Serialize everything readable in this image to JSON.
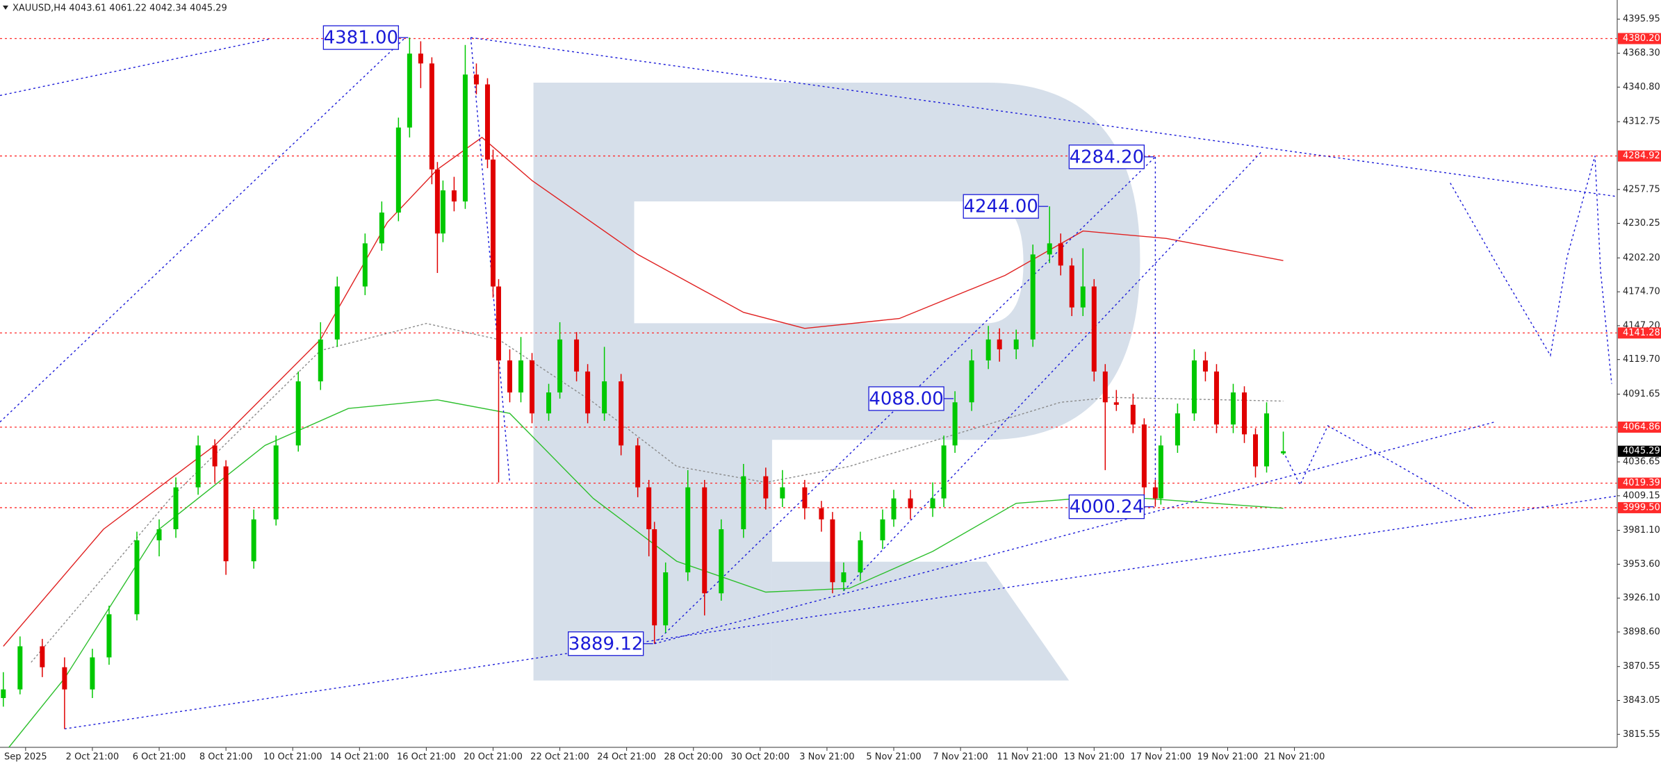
{
  "chart_data": {
    "type": "candlestick",
    "header": "XAUUSD,H4  4043.61 4061.22 4042.34 4045.29",
    "up_color": "#00c800",
    "down_color": "#e00000",
    "xlim": [
      -0.6,
      290
    ],
    "ylim": [
      3805,
      4411.5
    ],
    "yticks": [
      4395.95,
      {
        "value": 4368.3,
        "label": "4368.30"
      },
      {
        "value": 4340.8,
        "label": "4340.80"
      },
      4312.75,
      4257.75,
      4230.25,
      {
        "value": 4202.2,
        "label": "4202.20"
      },
      {
        "value": 4174.7,
        "label": "4174.70"
      },
      {
        "value": 4147.2,
        "label": "4147.20"
      },
      {
        "value": 4119.7,
        "label": "4119.70"
      },
      4091.65,
      4036.65,
      4009.15,
      {
        "value": 3981.1,
        "label": "3981.10"
      },
      {
        "value": 3953.6,
        "label": "3953.60"
      },
      {
        "value": 3926.1,
        "label": "3926.10"
      },
      {
        "value": 3898.6,
        "label": "3898.60"
      },
      3870.55,
      3843.05,
      3815.55
    ],
    "xticks": [
      {
        "value": 4,
        "label": "Sep 2025"
      },
      {
        "value": 16,
        "label": "2 Oct 21:00"
      },
      {
        "value": 28,
        "label": "6 Oct 21:00"
      },
      {
        "value": 40,
        "label": "8 Oct 21:00"
      },
      {
        "value": 52,
        "label": "10 Oct 21:00"
      },
      {
        "value": 64,
        "label": "14 Oct 21:00"
      },
      {
        "value": 76,
        "label": "16 Oct 21:00"
      },
      {
        "value": 88,
        "label": "20 Oct 21:00"
      },
      {
        "value": 100,
        "label": "22 Oct 21:00"
      },
      {
        "value": 112,
        "label": "24 Oct 21:00"
      },
      {
        "value": 124,
        "label": "28 Oct 20:00"
      },
      {
        "value": 136,
        "label": "30 Oct 20:00"
      },
      {
        "value": 148,
        "label": "3 Nov 21:00"
      },
      {
        "value": 160,
        "label": "5 Nov 21:00"
      },
      {
        "value": 172,
        "label": "7 Nov 21:00"
      },
      {
        "value": 184,
        "label": "11 Nov 21:00"
      },
      {
        "value": 196,
        "label": "13 Nov 21:00"
      },
      {
        "value": 208,
        "label": "17 Nov 21:00"
      },
      {
        "value": 220,
        "label": "19 Nov 21:00"
      },
      {
        "value": 232,
        "label": "21 Nov 21:00"
      }
    ],
    "x": [
      0,
      3,
      7,
      11,
      16,
      19,
      24,
      28,
      31,
      35,
      38,
      40,
      45,
      49,
      53,
      57,
      60,
      65,
      68,
      71,
      73,
      75,
      77,
      78,
      79,
      81,
      83,
      85,
      87,
      88,
      89,
      91,
      93,
      95,
      98,
      100,
      103,
      105,
      108,
      111,
      114,
      116,
      117,
      119,
      123,
      126,
      129,
      133,
      137,
      140,
      144,
      147,
      149,
      151,
      154,
      158,
      160,
      163,
      167,
      169,
      171,
      174,
      177,
      179,
      182,
      185,
      188,
      190,
      192,
      194,
      196,
      198,
      200,
      203,
      205,
      207,
      208,
      211,
      214,
      216,
      218,
      221,
      223,
      225,
      227,
      230
    ],
    "open": [
      3845,
      3852,
      3887,
      3870,
      3852,
      3878,
      3913,
      3973,
      3982,
      4016,
      4050,
      4033,
      3956,
      3990,
      4050,
      4102,
      4136,
      4179,
      4214,
      4239,
      4308,
      4368,
      4360,
      4274,
      4222,
      4257,
      4248,
      4351,
      4343,
      4282,
      4179,
      4119,
      4093,
      4119,
      4076,
      4093,
      4136,
      4110,
      4076,
      4102,
      4050,
      4016,
      3982,
      3904,
      3947,
      4016,
      3930,
      3982,
      4025,
      4007,
      4016,
      3999,
      3990,
      3939,
      3947,
      3973,
      3990,
      4007,
      3999,
      4007,
      4050,
      4085,
      4119,
      4136,
      4128,
      4136,
      4205,
      4214,
      4196,
      4162,
      4179,
      4110,
      4085,
      4083,
      4067,
      4016,
      4007,
      4050,
      4076,
      4119,
      4110,
      4067,
      4093,
      4059,
      4033,
      4043.61
    ],
    "high": [
      3866,
      3895,
      3893,
      3878,
      3885,
      3920,
      3980,
      3990,
      4024,
      4058,
      4055,
      4038,
      3998,
      4058,
      4110,
      4150,
      4187,
      4222,
      4248,
      4316,
      4381,
      4378,
      4365,
      4280,
      4265,
      4268,
      4375,
      4360,
      4348,
      4290,
      4185,
      4128,
      4138,
      4125,
      4100,
      4150,
      4142,
      4116,
      4130,
      4108,
      4056,
      4022,
      3988,
      3955,
      4030,
      4022,
      3990,
      4035,
      4032,
      4030,
      4022,
      4005,
      3996,
      3955,
      3980,
      3998,
      4014,
      4014,
      4020,
      4058,
      4094,
      4128,
      4147,
      4145,
      4144,
      4213,
      4244,
      4222,
      4202,
      4210,
      4185,
      4116,
      4095,
      4092,
      4072,
      4022,
      4058,
      4084,
      4128,
      4126,
      4116,
      4100,
      4098,
      4064,
      4085,
      4061.22
    ],
    "low": [
      3838,
      3848,
      3862,
      3820,
      3845,
      3872,
      3908,
      3960,
      3975,
      4010,
      4020,
      3945,
      3950,
      3985,
      4045,
      4095,
      4130,
      4172,
      4208,
      4232,
      4300,
      4340,
      4262,
      4190,
      4215,
      4240,
      4242,
      4335,
      4275,
      4170,
      4020,
      4085,
      4085,
      4068,
      4070,
      4088,
      4102,
      4068,
      4070,
      4042,
      4008,
      3960,
      3889.12,
      3898,
      3940,
      3912,
      3924,
      3975,
      3998,
      4000,
      3990,
      3980,
      3930,
      3932,
      3940,
      3966,
      3984,
      3990,
      3992,
      4000,
      4044,
      4078,
      4112,
      4118,
      4120,
      4130,
      4198,
      4188,
      4155,
      4155,
      4102,
      4030,
      4078,
      4060,
      4008,
      4000.24,
      4002,
      4044,
      4070,
      4102,
      4060,
      4060,
      4052,
      4024,
      4028,
      4042.34
    ],
    "close": [
      3852,
      3887,
      3870,
      3852,
      3878,
      3913,
      3973,
      3982,
      4016,
      4050,
      4033,
      3956,
      3990,
      4050,
      4102,
      4136,
      4179,
      4214,
      4239,
      4308,
      4368,
      4360,
      4274,
      4222,
      4257,
      4248,
      4351,
      4343,
      4282,
      4179,
      4119,
      4093,
      4119,
      4076,
      4093,
      4136,
      4110,
      4076,
      4102,
      4050,
      4016,
      3982,
      3904,
      3947,
      4016,
      3930,
      3982,
      4025,
      4007,
      4016,
      3999,
      3990,
      3939,
      3947,
      3973,
      3990,
      4007,
      3999,
      4007,
      4050,
      4085,
      4119,
      4136,
      4128,
      4136,
      4205,
      4214,
      4196,
      4162,
      4179,
      4110,
      4085,
      4083,
      4067,
      4016,
      4007,
      4050,
      4076,
      4119,
      4110,
      4067,
      4093,
      4059,
      4033,
      4076,
      4045.29
    ],
    "moving_averages": [
      {
        "color": "#e02020",
        "dash": false,
        "x": [
          0,
          18,
          38,
          57,
          69,
          78,
          86,
          95,
          114,
          133,
          144,
          161,
          180,
          194,
          209,
          230
        ],
        "values": [
          3887,
          3982,
          4050,
          4136,
          4231,
          4274,
          4300,
          4265,
          4205,
          4158,
          4145,
          4153,
          4188,
          4224,
          4218,
          4200
        ]
      },
      {
        "color": "#8a8a8a",
        "dash": true,
        "x": [
          5,
          30,
          57,
          76,
          89,
          106,
          121,
          137,
          152,
          171,
          190,
          199,
          230
        ],
        "values": [
          3874,
          4007,
          4127,
          4149,
          4136,
          4085,
          4033,
          4020,
          4033,
          4059,
          4085,
          4089,
          4086
        ]
      },
      {
        "color": "#2cbf2c",
        "dash": false,
        "x": [
          1,
          11,
          28,
          47,
          62,
          78,
          91,
          106,
          121,
          137,
          152,
          167,
          182,
          199,
          230
        ],
        "values": [
          3805,
          3861,
          3982,
          4050,
          4080,
          4087,
          4076,
          4007,
          3956,
          3931,
          3934,
          3964,
          4003,
          4009,
          3999
        ]
      }
    ],
    "levels": [
      {
        "value": 4380.2,
        "label": "4380.20"
      },
      4284.92,
      4141.28,
      4064.86,
      4019.39,
      {
        "value": 3999.5,
        "label": "3999.50"
      }
    ],
    "level_color": "#ff2a2a",
    "current_price": 4045.29,
    "trend_color": "#1a1ad8",
    "trendlines": [
      {
        "x": [
          -0.6,
          48
        ],
        "values": [
          4334,
          4380
        ]
      },
      {
        "x": [
          -0.6,
          72
        ],
        "values": [
          4069,
          4380
        ]
      },
      {
        "x": [
          84,
          290
        ],
        "values": [
          4381,
          4252
        ]
      },
      {
        "x": [
          11,
          290
        ],
        "values": [
          3820,
          4009
        ]
      },
      {
        "x": [
          117,
          268
        ],
        "values": [
          3889.12,
          4069
        ]
      },
      {
        "x": [
          151,
          226
        ],
        "values": [
          3932,
          4288
        ]
      },
      {
        "x": [
          117,
          207
        ],
        "values": [
          3889.12,
          4284.2
        ]
      },
      {
        "x": [
          207,
          207
        ],
        "values": [
          4284.2,
          4000.24
        ]
      },
      {
        "x": [
          84,
          91
        ],
        "values": [
          4381,
          4020
        ]
      },
      {
        "x": [
          230,
          233,
          238,
          251,
          264
        ],
        "values": [
          4045,
          4018,
          4066,
          4033,
          3999
        ]
      },
      {
        "x": [
          260,
          269,
          278,
          281,
          286,
          287,
          289
        ],
        "values": [
          4263,
          4192,
          4123,
          4203,
          4285,
          4192,
          4100
        ]
      }
    ],
    "annotations": {
      "x": [
        73,
        207,
        188,
        171,
        207,
        117
      ],
      "values": [
        4381,
        4284.2,
        4244,
        4088,
        4000.24,
        3889.12
      ],
      "value_labels": [
        "4381.00",
        "4284.20",
        "4244.00",
        "4088.00",
        "4000.24",
        "3889.12"
      ]
    }
  }
}
